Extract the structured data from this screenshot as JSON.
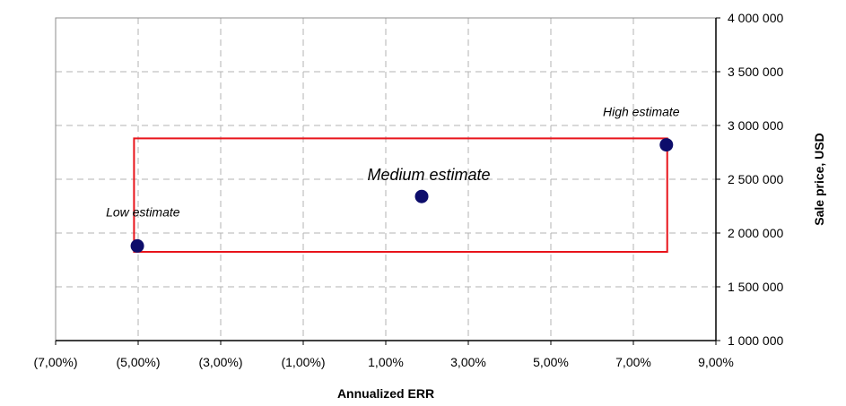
{
  "chart_data": {
    "type": "scatter",
    "title": "",
    "xlabel": "Annualized ERR",
    "ylabel": "Sale price, USD",
    "xlim": [
      -0.07,
      0.09
    ],
    "ylim": [
      1000000,
      4000000
    ],
    "grid": true,
    "x_ticks": [
      -0.07,
      -0.05,
      -0.03,
      -0.01,
      0.01,
      0.03,
      0.05,
      0.07,
      0.09
    ],
    "x_tick_labels": [
      "(7,00%)",
      "(5,00%)",
      "(3,00%)",
      "(1,00%)",
      "1,00%",
      "3,00%",
      "5,00%",
      "7,00%",
      "9,00%"
    ],
    "y_ticks": [
      1000000,
      1500000,
      2000000,
      2500000,
      3000000,
      3500000,
      4000000
    ],
    "y_tick_labels": [
      "1 000 000",
      "1 500 000",
      "2 000 000",
      "2 500 000",
      "3 000 000",
      "3 500 000",
      "4 000 000"
    ],
    "y_axis_side": "right",
    "points": [
      {
        "x": -0.0502,
        "y": 1880000,
        "label": "Low estimate"
      },
      {
        "x": 0.0187,
        "y": 2340000,
        "label": "Medium estimate"
      },
      {
        "x": 0.078,
        "y": 2820000,
        "label": "High estimate"
      }
    ],
    "highlight_box": {
      "x_min": -0.051,
      "x_max": 0.0782,
      "y_min": 1825000,
      "y_max": 2880000
    },
    "colors": {
      "points": "#0d0d6b",
      "box": "#e8141b",
      "grid": "#b3b3b3",
      "axis": "#000000"
    }
  }
}
